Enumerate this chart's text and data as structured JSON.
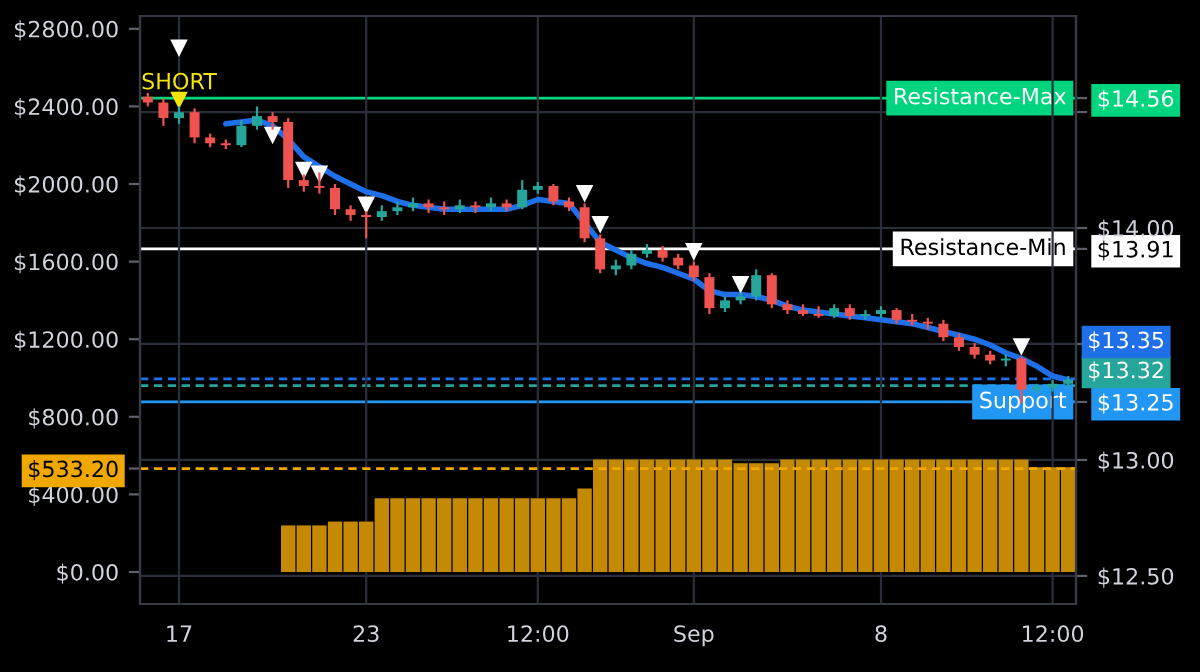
{
  "chart_data": {
    "type": "candlestick",
    "categories": [
      null,
      null,
      "17",
      null,
      null,
      null,
      null,
      null,
      null,
      null,
      null,
      null,
      null,
      null,
      "23",
      null,
      null,
      null,
      null,
      null,
      null,
      null,
      null,
      null,
      null,
      "12:00",
      null,
      null,
      null,
      null,
      null,
      null,
      null,
      null,
      null,
      "Sep",
      null,
      null,
      null,
      null,
      null,
      null,
      null,
      null,
      null,
      null,
      null,
      "8",
      null,
      null,
      null,
      null,
      null,
      null,
      null,
      null,
      null,
      null,
      "12:00",
      null
    ],
    "series": [
      {
        "type": "bar",
        "axis": "y",
        "color": "#c48a05",
        "values": [
          0,
          0,
          0,
          0,
          0,
          0,
          0,
          0,
          0,
          240,
          240,
          240,
          260,
          260,
          260,
          380,
          380,
          380,
          380,
          380,
          380,
          380,
          380,
          380,
          380,
          380,
          380,
          380,
          430,
          580,
          580,
          580,
          580,
          580,
          580,
          580,
          580,
          580,
          560,
          560,
          560,
          580,
          580,
          580,
          580,
          580,
          580,
          580,
          580,
          580,
          580,
          580,
          580,
          580,
          580,
          580,
          580,
          540,
          540,
          540
        ]
      },
      {
        "axis": "y",
        "colors": [
          "#ef5350",
          "#ef5350",
          "#26a69a",
          "#ef5350",
          "#ef5350",
          "#ef5350",
          "#26a69a",
          "#26a69a",
          "#ef5350",
          "#ef5350",
          "#ef5350",
          "#ef5350",
          "#ef5350",
          "#ef5350",
          "#ef5350",
          "#26a69a",
          "#26a69a",
          "#26a69a",
          "#ef5350",
          "#ef5350",
          "#26a69a",
          "#ef5350",
          "#26a69a",
          "#ef5350",
          "#26a69a",
          "#26a69a",
          "#ef5350",
          "#ef5350",
          "#ef5350",
          "#ef5350",
          "#26a69a",
          "#26a69a",
          "#26a69a",
          "#ef5350",
          "#ef5350",
          "#ef5350",
          "#ef5350",
          "#26a69a",
          "#26a69a",
          "#26a69a",
          "#ef5350",
          "#ef5350",
          "#ef5350",
          "#ef5350",
          "#26a69a",
          "#ef5350",
          "#26a69a",
          "#26a69a",
          "#ef5350",
          "#ef5350",
          "#ef5350",
          "#ef5350",
          "#ef5350",
          "#ef5350",
          "#ef5350",
          "#26a69a",
          "#ef5350",
          "#26a69a",
          "#26a69a",
          "#26a69a"
        ],
        "ohlc": [
          [
            2450,
            2470,
            2400,
            2420
          ],
          [
            2420,
            2440,
            2300,
            2340
          ],
          [
            2340,
            2400,
            2310,
            2370
          ],
          [
            2370,
            2390,
            2210,
            2240
          ],
          [
            2240,
            2260,
            2190,
            2210
          ],
          [
            2210,
            2230,
            2180,
            2200
          ],
          [
            2200,
            2330,
            2190,
            2300
          ],
          [
            2300,
            2400,
            2280,
            2350
          ],
          [
            2350,
            2370,
            2280,
            2320
          ],
          [
            2320,
            2340,
            1980,
            2020
          ],
          [
            2020,
            2050,
            1960,
            1990
          ],
          [
            1990,
            2060,
            1950,
            1980
          ],
          [
            1980,
            2000,
            1840,
            1870
          ],
          [
            1870,
            1890,
            1810,
            1840
          ],
          [
            1840,
            1860,
            1720,
            1830
          ],
          [
            1830,
            1890,
            1810,
            1860
          ],
          [
            1860,
            1910,
            1840,
            1880
          ],
          [
            1880,
            1930,
            1860,
            1900
          ],
          [
            1900,
            1920,
            1850,
            1880
          ],
          [
            1880,
            1910,
            1840,
            1870
          ],
          [
            1870,
            1920,
            1850,
            1890
          ],
          [
            1890,
            1910,
            1850,
            1880
          ],
          [
            1880,
            1930,
            1860,
            1900
          ],
          [
            1900,
            1920,
            1860,
            1880
          ],
          [
            1880,
            2020,
            1870,
            1970
          ],
          [
            1970,
            2010,
            1950,
            1990
          ],
          [
            1990,
            2000,
            1890,
            1910
          ],
          [
            1910,
            1930,
            1860,
            1880
          ],
          [
            1880,
            1900,
            1700,
            1720
          ],
          [
            1720,
            1740,
            1540,
            1560
          ],
          [
            1560,
            1610,
            1530,
            1580
          ],
          [
            1580,
            1660,
            1560,
            1640
          ],
          [
            1640,
            1690,
            1620,
            1660
          ],
          [
            1660,
            1680,
            1600,
            1620
          ],
          [
            1620,
            1640,
            1560,
            1580
          ],
          [
            1580,
            1600,
            1500,
            1520
          ],
          [
            1520,
            1540,
            1330,
            1360
          ],
          [
            1360,
            1420,
            1340,
            1400
          ],
          [
            1400,
            1440,
            1380,
            1420
          ],
          [
            1420,
            1560,
            1400,
            1530
          ],
          [
            1530,
            1540,
            1360,
            1380
          ],
          [
            1380,
            1400,
            1330,
            1350
          ],
          [
            1350,
            1380,
            1320,
            1330
          ],
          [
            1330,
            1370,
            1310,
            1320
          ],
          [
            1320,
            1380,
            1310,
            1360
          ],
          [
            1360,
            1380,
            1300,
            1320
          ],
          [
            1320,
            1350,
            1300,
            1330
          ],
          [
            1330,
            1370,
            1310,
            1350
          ],
          [
            1350,
            1360,
            1280,
            1300
          ],
          [
            1300,
            1330,
            1270,
            1290
          ],
          [
            1290,
            1310,
            1250,
            1280
          ],
          [
            1280,
            1300,
            1190,
            1210
          ],
          [
            1210,
            1230,
            1140,
            1160
          ],
          [
            1160,
            1180,
            1100,
            1120
          ],
          [
            1120,
            1140,
            1070,
            1090
          ],
          [
            1090,
            1120,
            1060,
            1100
          ],
          [
            1100,
            1110,
            870,
            940
          ],
          [
            940,
            970,
            920,
            950
          ],
          [
            950,
            990,
            930,
            970
          ],
          [
            970,
            1010,
            950,
            990
          ]
        ]
      },
      {
        "type": "line",
        "axis": "y",
        "color": "#1e6fe8",
        "values": [
          null,
          null,
          null,
          null,
          null,
          2310,
          2320,
          2330,
          2300,
          2230,
          2140,
          2090,
          2040,
          2000,
          1960,
          1940,
          1910,
          1890,
          1880,
          1870,
          1870,
          1870,
          1870,
          1870,
          1890,
          1920,
          1910,
          1900,
          1800,
          1700,
          1660,
          1620,
          1590,
          1570,
          1540,
          1510,
          1450,
          1430,
          1430,
          1420,
          1400,
          1370,
          1350,
          1340,
          1330,
          1320,
          1310,
          1300,
          1290,
          1280,
          1260,
          1240,
          1220,
          1200,
          1170,
          1130,
          1100,
          1060,
          1010,
          990
        ]
      },
      {
        "type": "scatter",
        "axis": "y",
        "marker": "triangle",
        "color": "#ffffff",
        "values": [
          null,
          null,
          2700,
          null,
          null,
          null,
          null,
          null,
          2250,
          null,
          2070,
          2050,
          null,
          null,
          1890,
          null,
          null,
          null,
          null,
          null,
          null,
          null,
          null,
          null,
          null,
          null,
          null,
          null,
          1950,
          1790,
          null,
          null,
          null,
          null,
          null,
          1650,
          null,
          null,
          1480,
          null,
          null,
          null,
          null,
          null,
          null,
          null,
          null,
          null,
          null,
          null,
          null,
          null,
          null,
          null,
          null,
          null,
          1160,
          null,
          null,
          null
        ]
      },
      {
        "type": "scatter",
        "axis": "y",
        "marker": "triangle",
        "color": "#f5e50c",
        "values": [
          null,
          null,
          2430,
          null,
          null,
          null,
          null,
          null,
          null,
          null,
          null,
          null,
          null,
          null,
          null,
          null,
          null,
          null,
          null,
          null,
          null,
          null,
          null,
          null,
          null,
          null,
          null,
          null,
          null,
          null,
          null,
          null,
          null,
          null,
          null,
          null,
          null,
          null,
          null,
          null,
          null,
          null,
          null,
          null,
          null,
          null,
          null,
          null,
          null,
          null,
          null,
          null,
          null,
          null,
          null,
          null,
          null,
          null,
          null,
          null
        ]
      }
    ],
    "annotations": [
      {
        "text": "SHORT",
        "x": "17",
        "y": 2520
      }
    ],
    "ylim": [
      -165,
      2866
    ],
    "yticks": [
      {
        "value": 0,
        "label": "$0.00"
      },
      {
        "value": 400,
        "label": "$400.00"
      },
      {
        "value": 533.2,
        "label": "$533.20"
      },
      {
        "value": 800,
        "label": "$800.00"
      },
      {
        "value": 1200,
        "label": "$1200.00"
      },
      {
        "value": 1600,
        "label": "$1600.00"
      },
      {
        "value": 2000,
        "label": "$2000.00"
      },
      {
        "value": 2400,
        "label": "$2400.00"
      },
      {
        "value": 2800,
        "label": "$2800.00"
      }
    ],
    "y2lim": [
      12.379,
      14.914
    ],
    "y2ticks": [
      {
        "value": 12.5,
        "label": "$12.50"
      },
      {
        "value": 13.0,
        "label": "$13.00"
      },
      {
        "value": 13.25,
        "label": "$13.25"
      },
      {
        "value": 13.5,
        "label": null
      },
      {
        "value": 13.91,
        "label": "$13.91"
      },
      {
        "value": 14.0,
        "label": "$14.00"
      },
      {
        "value": 14.5,
        "label": null
      },
      {
        "value": 14.56,
        "label": "$14.56"
      }
    ],
    "ref_lines": [
      {
        "axis": "y2",
        "value": 14.56,
        "label": "Resistance-Max",
        "color": "#00d47e",
        "line_style": "solid"
      },
      {
        "axis": "y2",
        "value": 13.91,
        "label": "Resistance-Min",
        "color": "#ffffff",
        "line_style": "solid"
      },
      {
        "axis": "y2",
        "value": 13.35,
        "label": "$13.35",
        "color": "#1e6fe8",
        "line_style": "dashed"
      },
      {
        "axis": "y2",
        "value": 13.32,
        "label": "$13.32",
        "color": "#26a69a",
        "line_style": "dashed"
      },
      {
        "axis": "y2",
        "value": 13.25,
        "label": "Support",
        "color": "#2196f3",
        "line_style": "solid"
      },
      {
        "axis": "y",
        "value": 533.2,
        "color": "#f0a800",
        "line_style": "dashed"
      }
    ],
    "grid": true,
    "legend": false
  }
}
